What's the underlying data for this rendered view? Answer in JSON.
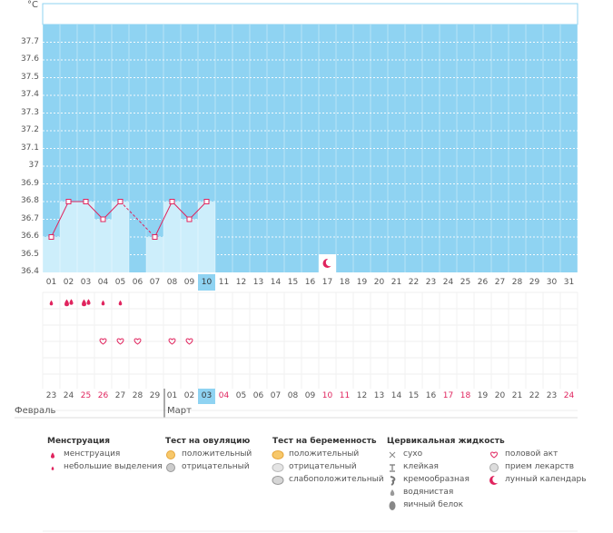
{
  "chart_data": {
    "type": "line",
    "ylabel": "°C",
    "ylim": [
      36.4,
      37.8
    ],
    "y_ticks": [
      "37.7",
      "37.6",
      "37.5",
      "37.4",
      "37.3",
      "37.2",
      "37.1",
      "37",
      "36.9",
      "36.8",
      "36.7",
      "36.6",
      "36.5",
      "36.4"
    ],
    "cycle_days": [
      "01",
      "02",
      "03",
      "04",
      "05",
      "06",
      "07",
      "08",
      "09",
      "10",
      "11",
      "12",
      "13",
      "14",
      "15",
      "16",
      "17",
      "18",
      "19",
      "20",
      "21",
      "22",
      "23",
      "24",
      "25",
      "26",
      "27",
      "28",
      "29",
      "30",
      "31"
    ],
    "calendar_dates": [
      "23",
      "24",
      "25",
      "26",
      "27",
      "28",
      "29",
      "01",
      "02",
      "03",
      "04",
      "05",
      "06",
      "07",
      "08",
      "09",
      "10",
      "11",
      "12",
      "13",
      "14",
      "15",
      "16",
      "17",
      "18",
      "19",
      "20",
      "21",
      "22",
      "23",
      "24"
    ],
    "red_date_indices": [
      2,
      3,
      10,
      16,
      17,
      23,
      24,
      30
    ],
    "today_index": 9,
    "months": [
      {
        "label": "Февраль",
        "start_index": 0
      },
      {
        "label": "Март",
        "start_index": 7
      }
    ],
    "series": [
      {
        "values": [
          {
            "day": 1,
            "temp": 36.6
          },
          {
            "day": 2,
            "temp": 36.8
          },
          {
            "day": 3,
            "temp": 36.8
          },
          {
            "day": 4,
            "temp": 36.7
          },
          {
            "day": 5,
            "temp": 36.8
          },
          {
            "day": 7,
            "temp": 36.6
          },
          {
            "day": 8,
            "temp": 36.8
          },
          {
            "day": 9,
            "temp": 36.7
          },
          {
            "day": 10,
            "temp": 36.8
          }
        ]
      }
    ],
    "dashed_segment_days": [
      5,
      7
    ],
    "lunar_marker_day": 17,
    "menstruation_marks": [
      {
        "day": 1,
        "kind": "small"
      },
      {
        "day": 2,
        "kind": "heavy"
      },
      {
        "day": 3,
        "kind": "heavy"
      },
      {
        "day": 4,
        "kind": "small"
      },
      {
        "day": 5,
        "kind": "small"
      }
    ],
    "intercourse_days": [
      4,
      5,
      6,
      8,
      9
    ]
  },
  "legend": {
    "menstruation": {
      "title": "Менструация",
      "items": [
        "менструация",
        "небольшие выделения"
      ]
    },
    "ovulation_test": {
      "title": "Тест на овуляцию",
      "items": [
        "положительный",
        "отрицательный"
      ]
    },
    "pregnancy_test": {
      "title": "Тест на беременность",
      "items": [
        "положительный",
        "отрицательный",
        "слабоположительный"
      ]
    },
    "cervical_fluid": {
      "title": "Цервикальная жидкость",
      "items": [
        "сухо",
        "клейкая",
        "кремообразная",
        "водянистая",
        "яичный белок"
      ]
    },
    "other": {
      "items": [
        "половой акт",
        "прием лекарств",
        "лунный календарь"
      ]
    }
  },
  "icons": {
    "drop": "drop-icon",
    "heart": "heart-icon",
    "moon": "moon-icon",
    "cross": "cross-icon",
    "circle": "circle-icon"
  },
  "colors": {
    "plot_bg": "#8fd3f2",
    "bar_fill": "#cdeefb",
    "line": "#e0245e",
    "accent_red": "#e0245e"
  }
}
